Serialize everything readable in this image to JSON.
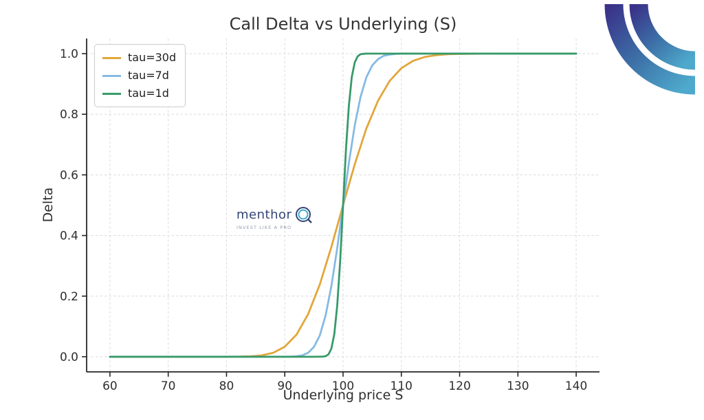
{
  "title": "Call Delta vs Underlying (S)",
  "watermark": {
    "brand": "menthor",
    "tagline": "INVEST LIKE A PRO",
    "brand_color": "#2B3A6E",
    "q_ring_color": "#31A7C6",
    "tagline_color": "#8B93A9"
  },
  "logo": {
    "name": "menthorq-arcs",
    "gradient_start": "#3A3389",
    "gradient_mid": "#3C6FA6",
    "gradient_end": "#4EA9CC"
  },
  "colors": {
    "grid": "#dedede",
    "spine": "#262626",
    "tick_text": "#2e2e2e",
    "title_text": "#333333"
  },
  "chart_data": {
    "type": "line",
    "title": "Call Delta vs Underlying (S)",
    "xlabel": "Underlying price S",
    "ylabel": "Delta",
    "xlim": [
      56,
      144
    ],
    "ylim": [
      -0.05,
      1.05
    ],
    "x_ticks": [
      60,
      70,
      80,
      90,
      100,
      110,
      120,
      130,
      140
    ],
    "y_ticks": [
      0.0,
      0.2,
      0.4,
      0.6,
      0.8,
      1.0
    ],
    "y_tick_labels": [
      "0.0",
      "0.2",
      "0.4",
      "0.6",
      "0.8",
      "1.0"
    ],
    "grid": true,
    "grid_style": "dashed",
    "legend_position": "upper left",
    "series": [
      {
        "name": "tau=30d",
        "color": "#E2A63A",
        "points": [
          [
            60,
            0
          ],
          [
            65,
            0
          ],
          [
            70,
            0
          ],
          [
            75,
            0
          ],
          [
            78,
            0.0001
          ],
          [
            80,
            0.0001
          ],
          [
            82,
            0.0003
          ],
          [
            84,
            0.0012
          ],
          [
            86,
            0.0042
          ],
          [
            88,
            0.0128
          ],
          [
            90,
            0.033
          ],
          [
            92,
            0.0728
          ],
          [
            94,
            0.14
          ],
          [
            96,
            0.238
          ],
          [
            98,
            0.362
          ],
          [
            100,
            0.5
          ],
          [
            102,
            0.635
          ],
          [
            104,
            0.753
          ],
          [
            106,
            0.845
          ],
          [
            108,
            0.91
          ],
          [
            110,
            0.952
          ],
          [
            112,
            0.976
          ],
          [
            114,
            0.989
          ],
          [
            116,
            0.995
          ],
          [
            118,
            0.998
          ],
          [
            120,
            0.999
          ],
          [
            125,
            1.0
          ],
          [
            130,
            1.0
          ],
          [
            135,
            1.0
          ],
          [
            140,
            1.0
          ]
        ]
      },
      {
        "name": "tau=7d",
        "color": "#85BAE4",
        "points": [
          [
            60,
            0
          ],
          [
            70,
            0
          ],
          [
            80,
            0
          ],
          [
            85,
            0
          ],
          [
            88,
            0.0001
          ],
          [
            90,
            0.0001
          ],
          [
            91,
            0.0003
          ],
          [
            92,
            0.0013
          ],
          [
            93,
            0.0044
          ],
          [
            94,
            0.0128
          ],
          [
            95,
            0.032
          ],
          [
            96,
            0.07
          ],
          [
            97,
            0.136
          ],
          [
            98,
            0.233
          ],
          [
            99,
            0.358
          ],
          [
            100,
            0.5
          ],
          [
            101,
            0.64
          ],
          [
            102,
            0.763
          ],
          [
            103,
            0.857
          ],
          [
            104,
            0.922
          ],
          [
            105,
            0.961
          ],
          [
            106,
            0.982
          ],
          [
            107,
            0.993
          ],
          [
            108,
            0.997
          ],
          [
            109,
            0.999
          ],
          [
            110,
            1.0
          ],
          [
            115,
            1.0
          ],
          [
            120,
            1.0
          ],
          [
            130,
            1.0
          ],
          [
            140,
            1.0
          ]
        ]
      },
      {
        "name": "tau=1d",
        "color": "#379A68",
        "points": [
          [
            60,
            0
          ],
          [
            70,
            0
          ],
          [
            80,
            0
          ],
          [
            90,
            0
          ],
          [
            95,
            0
          ],
          [
            96,
            0.0001
          ],
          [
            96.5,
            0.0003
          ],
          [
            97,
            0.0018
          ],
          [
            97.5,
            0.0078
          ],
          [
            98,
            0.027
          ],
          [
            98.5,
            0.075
          ],
          [
            99,
            0.169
          ],
          [
            99.5,
            0.316
          ],
          [
            100,
            0.5
          ],
          [
            100.5,
            0.683
          ],
          [
            101,
            0.829
          ],
          [
            101.5,
            0.923
          ],
          [
            102,
            0.971
          ],
          [
            102.5,
            0.991
          ],
          [
            103,
            0.998
          ],
          [
            103.5,
            0.9995
          ],
          [
            104,
            1.0
          ],
          [
            105,
            1.0
          ],
          [
            110,
            1.0
          ],
          [
            120,
            1.0
          ],
          [
            130,
            1.0
          ],
          [
            140,
            1.0
          ]
        ]
      }
    ]
  }
}
